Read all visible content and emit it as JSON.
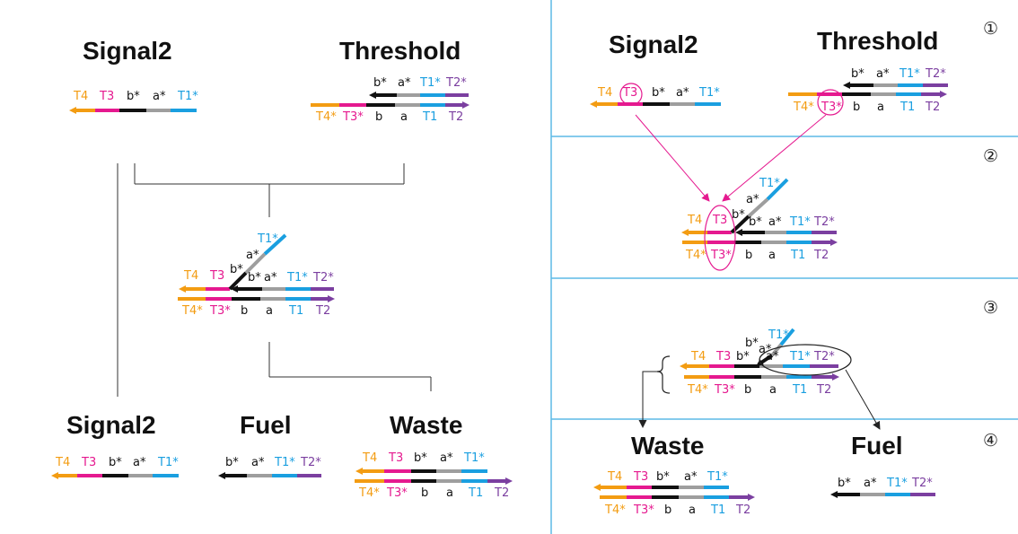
{
  "colors": {
    "T4": "#F39C12",
    "T3": "#E5198F",
    "b": "#111111",
    "a": "#9E9E9E",
    "T1": "#1A9FE0",
    "T2": "#7B3FA0",
    "connector": "#333333",
    "divider": "#5DBAE6",
    "highlight": "#E5198F"
  },
  "left": {
    "signal2_top": "Signal2",
    "threshold_top": "Threshold",
    "signal2_bottom": "Signal2",
    "fuel": "Fuel",
    "waste": "Waste"
  },
  "right": {
    "signal2": "Signal2",
    "threshold": "Threshold",
    "waste": "Waste",
    "fuel": "Fuel",
    "steps": [
      "①",
      "②",
      "③",
      "④"
    ]
  },
  "labels": {
    "T4": "T4",
    "T3": "T3",
    "b_star": "b*",
    "a_star": "a*",
    "T1_star": "T1*",
    "T2_star": "T2*",
    "T4_star": "T4*",
    "T3_star": "T3*",
    "b": "b",
    "a": "a",
    "T1": "T1",
    "T2": "T2"
  }
}
